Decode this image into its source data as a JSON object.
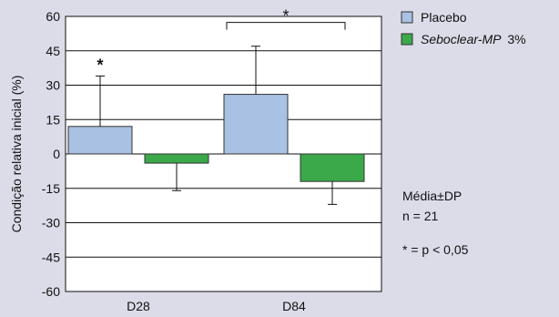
{
  "chart_data": {
    "type": "bar",
    "categories": [
      "D28",
      "D84"
    ],
    "series": [
      {
        "name": "Placebo",
        "values": [
          12,
          26
        ],
        "errors": [
          22,
          21
        ],
        "color": "#a9c1e2"
      },
      {
        "name": "Seboclear-MP",
        "name_suffix": "3%",
        "values": [
          -4,
          -12
        ],
        "errors": [
          12,
          10
        ],
        "color": "#3ba84a"
      }
    ],
    "ylabel": "Condição relativa inicial (%)",
    "ylim": [
      -60,
      60
    ],
    "yticks": [
      60,
      45,
      30,
      15,
      0,
      -15,
      -30,
      -45,
      -60
    ],
    "grid": true,
    "legend": "top-right",
    "annotations": {
      "d28_placebo_star": "*",
      "d84_bracket_star": "*",
      "stats_mean": "Média±DP",
      "stats_n": "n = 21",
      "stats_p": "* = p < 0,05"
    },
    "annotation_colors": {
      "d28_star": "#111111",
      "d84_star": "#a9c1e2"
    }
  }
}
